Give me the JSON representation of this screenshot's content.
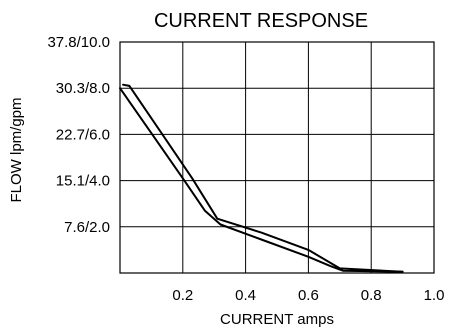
{
  "chart_data": {
    "type": "line",
    "title": "CURRENT RESPONSE",
    "xlabel": "CURRENT amps",
    "ylabel": "FLOW lpm/gpm",
    "xlim": [
      0,
      1.0
    ],
    "ylim": [
      0,
      10.0
    ],
    "x_ticks": [
      {
        "value": 0.2,
        "label": "0.2"
      },
      {
        "value": 0.4,
        "label": "0.4"
      },
      {
        "value": 0.6,
        "label": "0.6"
      },
      {
        "value": 0.8,
        "label": "0.8"
      },
      {
        "value": 1.0,
        "label": "1.0"
      }
    ],
    "y_ticks": [
      {
        "value": 2.0,
        "label": "7.6/2.0"
      },
      {
        "value": 4.0,
        "label": "15.1/4.0"
      },
      {
        "value": 6.0,
        "label": "22.7/6.0"
      },
      {
        "value": 8.0,
        "label": "30.3/8.0"
      },
      {
        "value": 10.0,
        "label": "37.8/10.0"
      }
    ],
    "grid": true,
    "series": [
      {
        "x": [
          0.0,
          0.1,
          0.2,
          0.27,
          0.32,
          0.45,
          0.6,
          0.67,
          0.71,
          0.9
        ],
        "y": [
          8.0,
          6.05,
          4.1,
          2.7,
          2.1,
          1.45,
          0.7,
          0.3,
          0.1,
          0.05
        ]
      },
      {
        "x": [
          0.01,
          0.03,
          0.13,
          0.23,
          0.31,
          0.45,
          0.6,
          0.7,
          0.9
        ],
        "y": [
          8.15,
          8.1,
          6.1,
          4.1,
          2.35,
          1.75,
          1.0,
          0.2,
          0.05
        ]
      }
    ]
  }
}
